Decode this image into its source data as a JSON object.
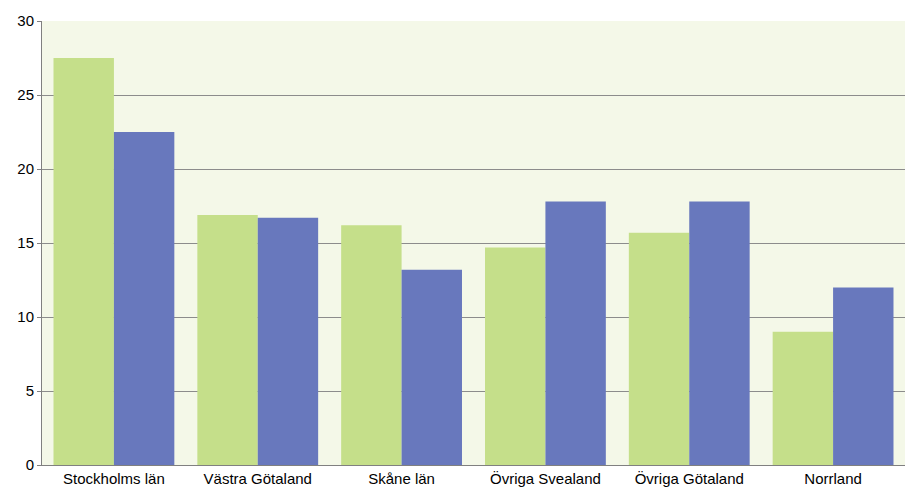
{
  "chart_data": {
    "type": "bar",
    "categories": [
      "Stockholms län",
      "Västra Götaland",
      "Skåne län",
      "Övriga Svealand",
      "Övriga Götaland",
      "Norrland"
    ],
    "series": [
      {
        "color": "#c5df8a",
        "values": [
          27.5,
          16.9,
          16.2,
          14.7,
          15.7,
          9.0
        ]
      },
      {
        "color": "#6878bd",
        "values": [
          22.5,
          16.7,
          13.2,
          17.8,
          17.8,
          12.0
        ]
      }
    ],
    "ylim": [
      0,
      30
    ],
    "yticks": [
      0,
      5,
      10,
      15,
      20,
      25,
      30
    ],
    "grid": true
  }
}
